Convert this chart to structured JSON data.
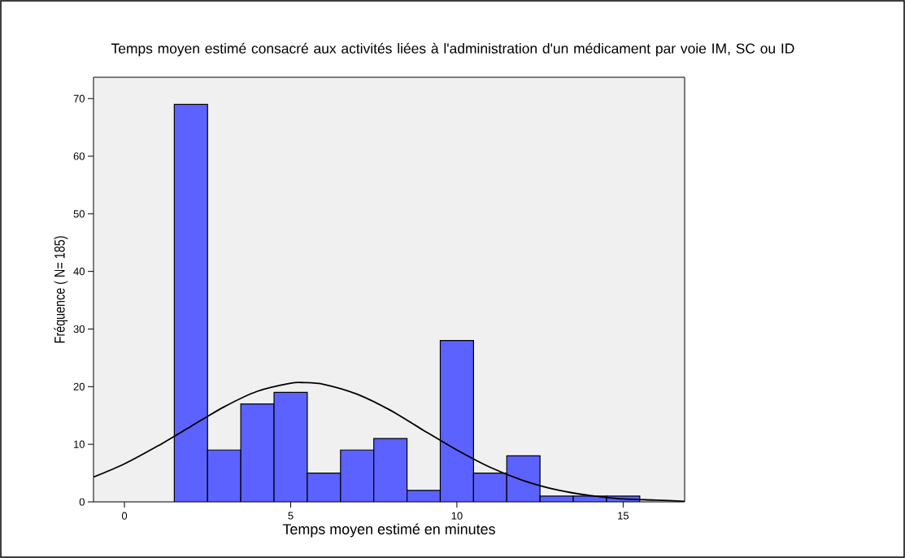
{
  "chart_data": {
    "type": "histogram",
    "title": "Temps moyen estimé consacré aux activités liées à l'administration d'un médicament par voie IM, SC ou ID",
    "xlabel": "Temps moyen estimé en minutes",
    "ylabel": "Fréquence ( N= 185)",
    "series": [
      {
        "type": "histogram",
        "color": "#5c62ff",
        "bins": [
          1.5,
          2.5,
          3.5,
          4.5,
          5.5,
          6.5,
          7.5,
          8.5,
          9.5,
          10.5,
          11.5,
          12.5,
          13.5,
          14.5,
          15.5
        ],
        "values": [
          69,
          9,
          17,
          19,
          5,
          9,
          11,
          2,
          28,
          5,
          8,
          1,
          1,
          1
        ]
      },
      {
        "type": "line",
        "color": "#000000",
        "x": [
          -0.93,
          0,
          1,
          2,
          3,
          4,
          5,
          5.4,
          6,
          7,
          8,
          9,
          10,
          11,
          12,
          13,
          14,
          15,
          16,
          16.85
        ],
        "values": [
          4.3,
          6.6,
          9.7,
          13.1,
          16.5,
          19.2,
          20.6,
          20.7,
          20.4,
          18.7,
          15.9,
          12.4,
          9.0,
          6.0,
          3.7,
          2.1,
          1.1,
          0.5,
          0.3,
          0.1
        ]
      }
    ],
    "xlim": [
      -0.93,
      16.85
    ],
    "ylim": [
      0,
      73.7
    ],
    "xticks": [
      0,
      5,
      10,
      15
    ],
    "yticks": [
      0,
      10,
      20,
      30,
      40,
      50,
      60,
      70
    ],
    "grid": false,
    "marker": "none",
    "line_style": "solid"
  }
}
